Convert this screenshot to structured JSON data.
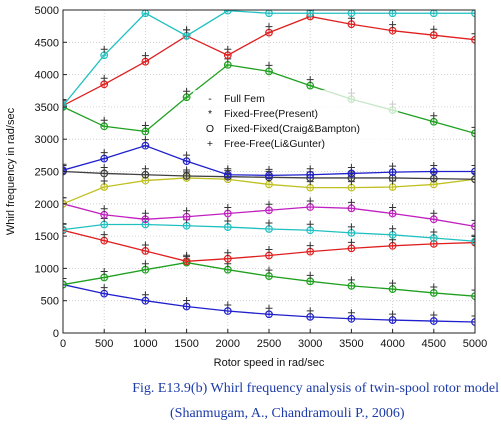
{
  "chart_data": {
    "type": "line",
    "xlabel": "Rotor speed in rad/sec",
    "ylabel": "Whirl frequency in rad/sec",
    "xlim": [
      0,
      5000
    ],
    "ylim": [
      0,
      5000
    ],
    "xticks": [
      0,
      500,
      1000,
      1500,
      2000,
      2500,
      3000,
      3500,
      4000,
      4500,
      5000
    ],
    "yticks": [
      0,
      500,
      1000,
      1500,
      2000,
      2500,
      3000,
      3500,
      4000,
      4500,
      5000
    ],
    "grid": true,
    "legend": {
      "placement": "center",
      "entries": [
        {
          "symbol": "-",
          "label": "Full Fem"
        },
        {
          "symbol": "*",
          "label": "Fixed-Free(Present)"
        },
        {
          "symbol": "O",
          "label": "Fixed-Fixed(Craig&Bampton)"
        },
        {
          "symbol": "+",
          "label": "Free-Free(Li&Gunter)"
        }
      ]
    },
    "x": [
      0,
      500,
      1000,
      1500,
      2000,
      2500,
      3000,
      3500,
      4000,
      4500,
      5000
    ],
    "series": [
      {
        "color": "#2020cc",
        "values": [
          750,
          610,
          500,
          410,
          340,
          290,
          250,
          220,
          200,
          185,
          170
        ]
      },
      {
        "color": "#20a020",
        "values": [
          750,
          860,
          980,
          1090,
          980,
          880,
          800,
          730,
          680,
          620,
          570
        ]
      },
      {
        "color": "#e02020",
        "values": [
          1590,
          1430,
          1270,
          1110,
          1150,
          1200,
          1260,
          1310,
          1350,
          1380,
          1400
        ]
      },
      {
        "color": "#20c0c0",
        "values": [
          1600,
          1680,
          1680,
          1660,
          1640,
          1610,
          1590,
          1550,
          1520,
          1470,
          1420
        ]
      },
      {
        "color": "#c020c0",
        "values": [
          2000,
          1830,
          1760,
          1800,
          1850,
          1900,
          1950,
          1930,
          1850,
          1760,
          1650
        ]
      },
      {
        "color": "#c0c020",
        "values": [
          2000,
          2260,
          2360,
          2400,
          2380,
          2300,
          2250,
          2250,
          2260,
          2300,
          2380
        ]
      },
      {
        "color": "#404040",
        "values": [
          2500,
          2470,
          2450,
          2430,
          2420,
          2410,
          2400,
          2400,
          2400,
          2390,
          2380
        ]
      },
      {
        "color": "#2020cc",
        "values": [
          2520,
          2700,
          2900,
          2660,
          2450,
          2440,
          2450,
          2470,
          2490,
          2500,
          2500
        ]
      },
      {
        "color": "#20a020",
        "values": [
          3500,
          3200,
          3120,
          3650,
          4150,
          4050,
          3830,
          3620,
          3450,
          3270,
          3090
        ]
      },
      {
        "color": "#e02020",
        "values": [
          3520,
          3850,
          4200,
          4600,
          4300,
          4650,
          4900,
          4780,
          4680,
          4610,
          4540
        ]
      },
      {
        "color": "#20c0c0",
        "values": [
          3520,
          4300,
          4950,
          4600,
          4990,
          4950,
          4950,
          4950,
          4950,
          4950,
          4950
        ]
      }
    ]
  },
  "caption": {
    "line1": "Fig. E13.9(b) Whirl frequency analysis of twin-spool rotor model",
    "line2": "(Shanmugam, A., Chandramouli P., 2006)"
  }
}
